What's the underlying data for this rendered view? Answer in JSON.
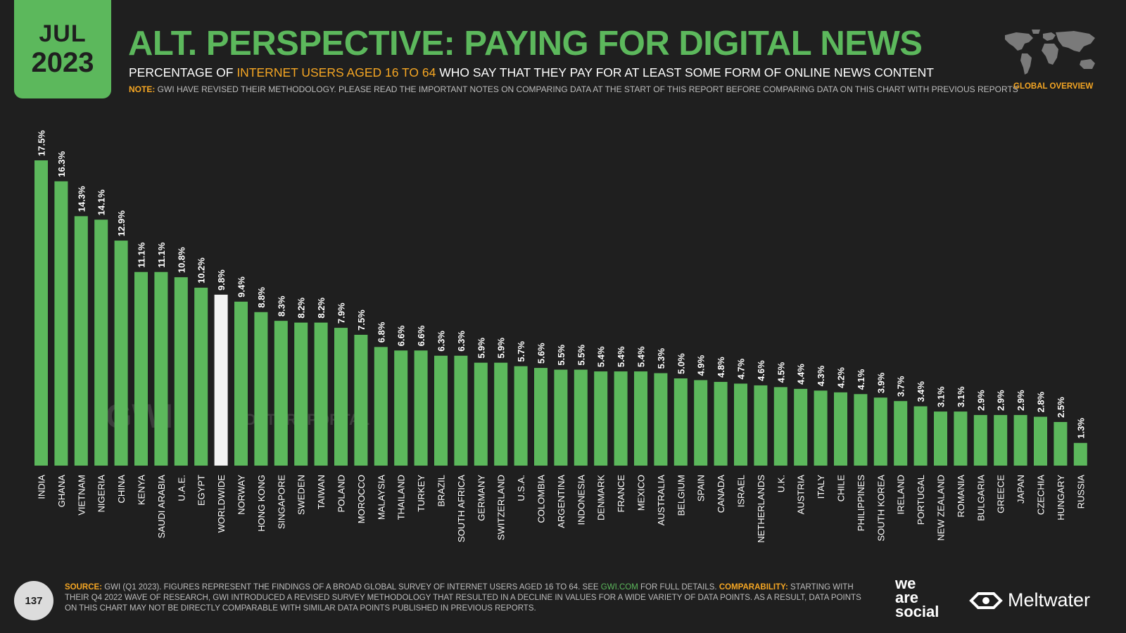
{
  "badge": {
    "month": "JUL",
    "year": "2023"
  },
  "header": {
    "title": "ALT. PERSPECTIVE: PAYING FOR DIGITAL NEWS",
    "subtitle_pre": "PERCENTAGE OF ",
    "subtitle_highlight": "INTERNET USERS AGED 16 TO 64",
    "subtitle_post": " WHO SAY THAT THEY PAY FOR AT LEAST SOME FORM OF ONLINE NEWS CONTENT",
    "note_label": "NOTE:",
    "note_text": " GWI HAVE REVISED THEIR METHODOLOGY. PLEASE READ THE IMPORTANT NOTES ON COMPARING DATA AT THE START OF THIS REPORT BEFORE COMPARING DATA ON THIS CHART WITH PREVIOUS REPORTS",
    "region_label": "GLOBAL OVERVIEW"
  },
  "chart_data": {
    "type": "bar",
    "categories": [
      "INDIA",
      "GHANA",
      "VIETNAM",
      "NIGERIA",
      "CHINA",
      "KENYA",
      "SAUDI ARABIA",
      "U.A.E.",
      "EGYPT",
      "WORLDWIDE",
      "NORWAY",
      "HONG KONG",
      "SINGAPORE",
      "SWEDEN",
      "TAIWAN",
      "POLAND",
      "MOROCCO",
      "MALAYSIA",
      "THAILAND",
      "TURKEY",
      "BRAZIL",
      "SOUTH AFRICA",
      "GERMANY",
      "SWITZERLAND",
      "U.S.A.",
      "COLOMBIA",
      "ARGENTINA",
      "INDONESIA",
      "DENMARK",
      "FRANCE",
      "MEXICO",
      "AUSTRALIA",
      "BELGIUM",
      "SPAIN",
      "CANADA",
      "ISRAEL",
      "NETHERLANDS",
      "U.K.",
      "AUSTRIA",
      "ITALY",
      "CHILE",
      "PHILIPPINES",
      "SOUTH KOREA",
      "IRELAND",
      "PORTUGAL",
      "NEW ZEALAND",
      "ROMANIA",
      "BULGARIA",
      "GREECE",
      "JAPAN",
      "CZECHIA",
      "HUNGARY",
      "RUSSIA"
    ],
    "values": [
      17.5,
      16.3,
      14.3,
      14.1,
      12.9,
      11.1,
      11.1,
      10.8,
      10.2,
      9.8,
      9.4,
      8.8,
      8.3,
      8.2,
      8.2,
      7.9,
      7.5,
      6.8,
      6.6,
      6.6,
      6.3,
      6.3,
      5.9,
      5.9,
      5.7,
      5.6,
      5.5,
      5.5,
      5.4,
      5.4,
      5.4,
      5.3,
      5.0,
      4.9,
      4.8,
      4.7,
      4.6,
      4.5,
      4.4,
      4.3,
      4.2,
      4.1,
      3.9,
      3.7,
      3.4,
      3.1,
      3.1,
      2.9,
      2.9,
      2.9,
      2.8,
      2.5,
      1.3
    ],
    "value_labels": [
      "17.5%",
      "16.3%",
      "14.3%",
      "14.1%",
      "12.9%",
      "11.1%",
      "11.1%",
      "10.8%",
      "10.2%",
      "9.8%",
      "9.4%",
      "8.8%",
      "8.3%",
      "8.2%",
      "8.2%",
      "7.9%",
      "7.5%",
      "6.8%",
      "6.6%",
      "6.6%",
      "6.3%",
      "6.3%",
      "5.9%",
      "5.9%",
      "5.7%",
      "5.6%",
      "5.5%",
      "5.5%",
      "5.4%",
      "5.4%",
      "5.4%",
      "5.3%",
      "5.0%",
      "4.9%",
      "4.8%",
      "4.7%",
      "4.6%",
      "4.5%",
      "4.4%",
      "4.3%",
      "4.2%",
      "4.1%",
      "3.9%",
      "3.7%",
      "3.4%",
      "3.1%",
      "3.1%",
      "2.9%",
      "2.9%",
      "2.9%",
      "2.8%",
      "2.5%",
      "1.3%"
    ],
    "highlight_category": "WORLDWIDE",
    "colors": {
      "bar": "#5cb85c",
      "highlight": "#f2f2f2"
    },
    "ylim": [
      0,
      17.5
    ]
  },
  "watermarks": {
    "gwi": "GWI.",
    "datareportal": "DATAREPORTAL"
  },
  "footer": {
    "page_number": "137",
    "source_label": "SOURCE:",
    "source_text_1": " GWI (Q1 2023). FIGURES REPRESENT THE FINDINGS OF A BROAD GLOBAL SURVEY OF INTERNET USERS AGED 16 TO 64. SEE ",
    "source_link": "GWI.COM",
    "source_text_2": " FOR FULL DETAILS. ",
    "comparability_label": "COMPARABILITY:",
    "comparability_text": " STARTING WITH THEIR Q4 2022 WAVE OF RESEARCH, GWI INTRODUCED A REVISED SURVEY METHODOLOGY THAT RESULTED IN A DECLINE IN VALUES FOR A WIDE VARIETY OF DATA POINTS. AS A RESULT, DATA POINTS ON THIS CHART MAY NOT BE DIRECTLY COMPARABLE WITH SIMILAR DATA POINTS PUBLISHED IN PREVIOUS REPORTS.",
    "we_are_social": [
      "we",
      "are",
      "social"
    ],
    "meltwater": "Meltwater"
  },
  "colors": {
    "background": "#1f1f1f",
    "accent_green": "#5cb85c",
    "accent_orange": "#f5a623"
  }
}
